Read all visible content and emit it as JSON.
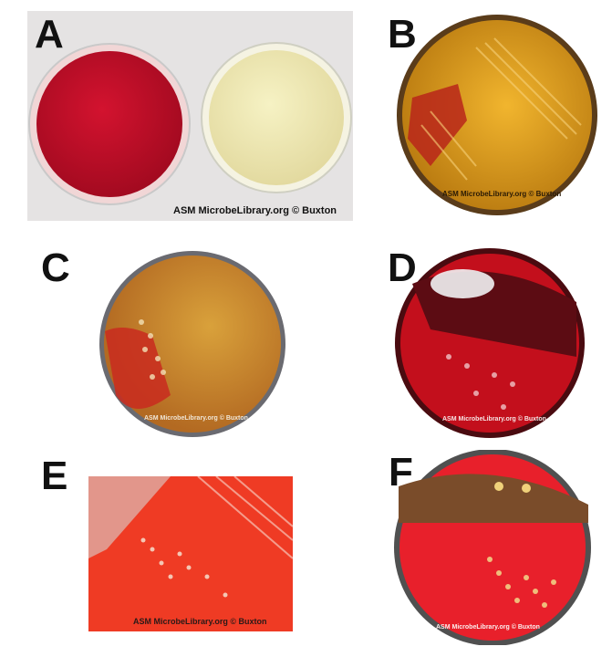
{
  "panels": [
    {
      "label": "A",
      "credit": "ASM MicrobeLibrary.org © Buxton"
    },
    {
      "label": "B",
      "credit": "ASM MicrobeLibrary.org © Buxton"
    },
    {
      "label": "C",
      "credit": "ASM MicrobeLibrary.org © Buxton"
    },
    {
      "label": "D",
      "credit": "ASM MicrobeLibrary.org © Buxton"
    },
    {
      "label": "E",
      "credit": "ASM MicrobeLibrary.org © Buxton"
    },
    {
      "label": "F",
      "credit": "ASM MicrobeLibrary.org © Buxton"
    }
  ],
  "colors": {
    "blood_agar": "#c8102e",
    "chocolate_agar": "#f2e9a8",
    "yellow_growth": "#e3a21c",
    "dark_red": "#6b0d12",
    "bright_red": "#ef3b24"
  }
}
